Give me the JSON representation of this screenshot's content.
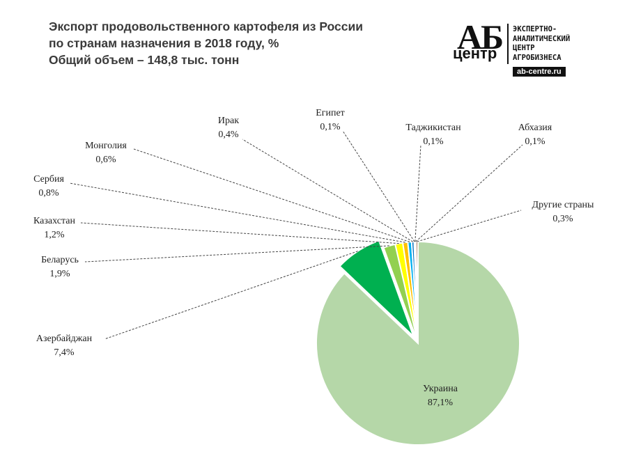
{
  "title_lines": [
    "Экспорт продовольственного картофеля из России",
    "по странам назначения в 2018 году, %",
    "Общий объем – 148,8 тыс. тонн"
  ],
  "logo": {
    "mark_top": "АБ",
    "mark_bottom": "центр",
    "text_lines": [
      "ЭКСПЕРТНО-",
      "АНАЛИТИЧЕСКИЙ",
      "ЦЕНТР",
      "АГРОБИЗНЕСА"
    ],
    "site": "ab-centre.ru"
  },
  "chart_data": {
    "type": "pie",
    "title": "Экспорт продовольственного картофеля из России по странам назначения в 2018 году, %",
    "subtitle": "Общий объем – 148,8 тыс. тонн",
    "slices": [
      {
        "name": "Украина",
        "value": 87.1,
        "label": "87,1%",
        "color": "#b5d7a8"
      },
      {
        "name": "Азербайджан",
        "value": 7.4,
        "label": "7,4%",
        "color": "#00b050"
      },
      {
        "name": "Беларусь",
        "value": 1.9,
        "label": "1,9%",
        "color": "#92d050"
      },
      {
        "name": "Казахстан",
        "value": 1.2,
        "label": "1,2%",
        "color": "#ffff00"
      },
      {
        "name": "Сербия",
        "value": 0.8,
        "label": "0,8%",
        "color": "#ffc000"
      },
      {
        "name": "Монголия",
        "value": 0.6,
        "label": "0,6%",
        "color": "#00b0f0"
      },
      {
        "name": "Ирак",
        "value": 0.4,
        "label": "0,4%",
        "color": "#0070c0"
      },
      {
        "name": "Египет",
        "value": 0.1,
        "label": "0,1%",
        "color": "#002060"
      },
      {
        "name": "Таджикистан",
        "value": 0.1,
        "label": "0,1%",
        "color": "#7030a0"
      },
      {
        "name": "Абхазия",
        "value": 0.1,
        "label": "0,1%",
        "color": "#c00000"
      },
      {
        "name": "Другие страны",
        "value": 0.3,
        "label": "0,3%",
        "color": "#843c0c"
      }
    ],
    "exploded_slice": "Азербайджан",
    "legend": "none"
  }
}
